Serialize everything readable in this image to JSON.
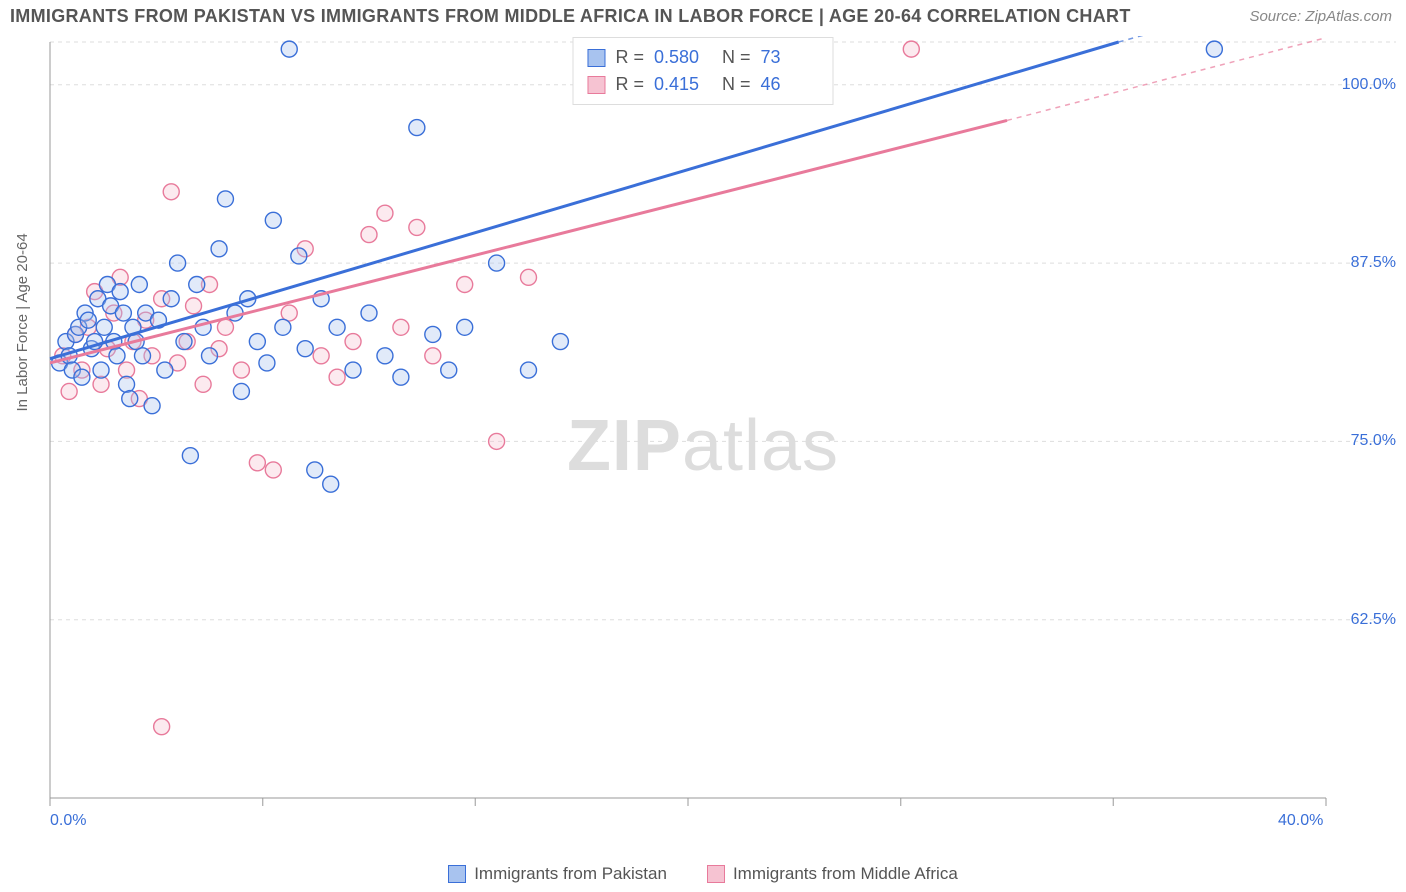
{
  "title": "IMMIGRANTS FROM PAKISTAN VS IMMIGRANTS FROM MIDDLE AFRICA IN LABOR FORCE | AGE 20-64 CORRELATION CHART",
  "source": "Source: ZipAtlas.com",
  "ylabel": "In Labor Force | Age 20-64",
  "watermark_a": "ZIP",
  "watermark_b": "atlas",
  "chart": {
    "type": "scatter",
    "background_color": "#ffffff",
    "grid_color": "#dddddd",
    "axis_color": "#999999",
    "tick_color": "#999999",
    "label_color": "#666666",
    "value_color": "#3a6fd8",
    "title_color": "#555555",
    "title_fontsize": 18,
    "tick_fontsize": 16,
    "legend_fontsize": 17,
    "xlim": [
      0,
      40
    ],
    "ylim": [
      50,
      103
    ],
    "xticks": [
      0,
      6.67,
      13.33,
      20,
      26.67,
      33.33,
      40
    ],
    "xtick_labels_shown": {
      "0": "0.0%",
      "40": "40.0%"
    },
    "yticks": [
      62.5,
      75.0,
      87.5,
      100.0
    ],
    "ytick_labels": [
      "62.5%",
      "75.0%",
      "87.5%",
      "100.0%"
    ],
    "marker_radius": 8,
    "marker_fill_opacity": 0.35,
    "marker_stroke_width": 1.4,
    "trend_line_width": 3,
    "series": [
      {
        "name": "Immigrants from Pakistan",
        "color_stroke": "#3a6fd8",
        "color_fill": "#a8c3ef",
        "R": "0.580",
        "N": "73",
        "trend": {
          "x1": 0,
          "y1": 80.8,
          "x2": 33.5,
          "y2": 103,
          "dashed_x2": 40,
          "dashed_y2": 107
        },
        "points": [
          [
            0.3,
            80.5
          ],
          [
            0.5,
            82.0
          ],
          [
            0.6,
            81.0
          ],
          [
            0.7,
            80.0
          ],
          [
            0.8,
            82.5
          ],
          [
            0.9,
            83.0
          ],
          [
            1.0,
            79.5
          ],
          [
            1.1,
            84.0
          ],
          [
            1.2,
            83.5
          ],
          [
            1.3,
            81.5
          ],
          [
            1.4,
            82.0
          ],
          [
            1.5,
            85.0
          ],
          [
            1.6,
            80.0
          ],
          [
            1.7,
            83.0
          ],
          [
            1.8,
            86.0
          ],
          [
            1.9,
            84.5
          ],
          [
            2.0,
            82.0
          ],
          [
            2.1,
            81.0
          ],
          [
            2.2,
            85.5
          ],
          [
            2.3,
            84.0
          ],
          [
            2.4,
            79.0
          ],
          [
            2.5,
            78.0
          ],
          [
            2.6,
            83.0
          ],
          [
            2.7,
            82.0
          ],
          [
            2.8,
            86.0
          ],
          [
            2.9,
            81.0
          ],
          [
            3.0,
            84.0
          ],
          [
            3.2,
            77.5
          ],
          [
            3.4,
            83.5
          ],
          [
            3.6,
            80.0
          ],
          [
            3.8,
            85.0
          ],
          [
            4.0,
            87.5
          ],
          [
            4.2,
            82.0
          ],
          [
            4.4,
            74.0
          ],
          [
            4.6,
            86.0
          ],
          [
            4.8,
            83.0
          ],
          [
            5.0,
            81.0
          ],
          [
            5.3,
            88.5
          ],
          [
            5.5,
            92.0
          ],
          [
            5.8,
            84.0
          ],
          [
            6.0,
            78.5
          ],
          [
            6.2,
            85.0
          ],
          [
            6.5,
            82.0
          ],
          [
            6.8,
            80.5
          ],
          [
            7.0,
            90.5
          ],
          [
            7.3,
            83.0
          ],
          [
            7.5,
            102.5
          ],
          [
            7.8,
            88.0
          ],
          [
            8.0,
            81.5
          ],
          [
            8.3,
            73.0
          ],
          [
            8.5,
            85.0
          ],
          [
            8.8,
            72.0
          ],
          [
            9.0,
            83.0
          ],
          [
            9.5,
            80.0
          ],
          [
            10.0,
            84.0
          ],
          [
            10.5,
            81.0
          ],
          [
            11.0,
            79.5
          ],
          [
            11.5,
            97.0
          ],
          [
            12.0,
            82.5
          ],
          [
            12.5,
            80.0
          ],
          [
            13.0,
            83.0
          ],
          [
            14.0,
            87.5
          ],
          [
            15.0,
            80.0
          ],
          [
            16.0,
            82.0
          ],
          [
            36.5,
            102.5
          ]
        ]
      },
      {
        "name": "Immigrants from Middle Africa",
        "color_stroke": "#e87a9b",
        "color_fill": "#f6c3d2",
        "R": "0.415",
        "N": "46",
        "trend": {
          "x1": 0,
          "y1": 80.5,
          "x2": 30,
          "y2": 97.5,
          "dashed_x2": 40,
          "dashed_y2": 103.3
        },
        "points": [
          [
            0.4,
            81.0
          ],
          [
            0.6,
            78.5
          ],
          [
            0.8,
            82.5
          ],
          [
            1.0,
            80.0
          ],
          [
            1.2,
            83.0
          ],
          [
            1.4,
            85.5
          ],
          [
            1.6,
            79.0
          ],
          [
            1.8,
            81.5
          ],
          [
            2.0,
            84.0
          ],
          [
            2.2,
            86.5
          ],
          [
            2.4,
            80.0
          ],
          [
            2.6,
            82.0
          ],
          [
            2.8,
            78.0
          ],
          [
            3.0,
            83.5
          ],
          [
            3.2,
            81.0
          ],
          [
            3.5,
            85.0
          ],
          [
            3.8,
            92.5
          ],
          [
            4.0,
            80.5
          ],
          [
            4.3,
            82.0
          ],
          [
            4.5,
            84.5
          ],
          [
            4.8,
            79.0
          ],
          [
            5.0,
            86.0
          ],
          [
            5.3,
            81.5
          ],
          [
            5.5,
            83.0
          ],
          [
            6.0,
            80.0
          ],
          [
            6.5,
            73.5
          ],
          [
            7.0,
            73.0
          ],
          [
            7.5,
            84.0
          ],
          [
            8.0,
            88.5
          ],
          [
            8.5,
            81.0
          ],
          [
            9.0,
            79.5
          ],
          [
            9.5,
            82.0
          ],
          [
            10.0,
            89.5
          ],
          [
            10.5,
            91.0
          ],
          [
            11.0,
            83.0
          ],
          [
            11.5,
            90.0
          ],
          [
            12.0,
            81.0
          ],
          [
            13.0,
            86.0
          ],
          [
            14.0,
            75.0
          ],
          [
            15.0,
            86.5
          ],
          [
            3.5,
            55.0
          ],
          [
            27.0,
            102.5
          ]
        ]
      }
    ]
  }
}
